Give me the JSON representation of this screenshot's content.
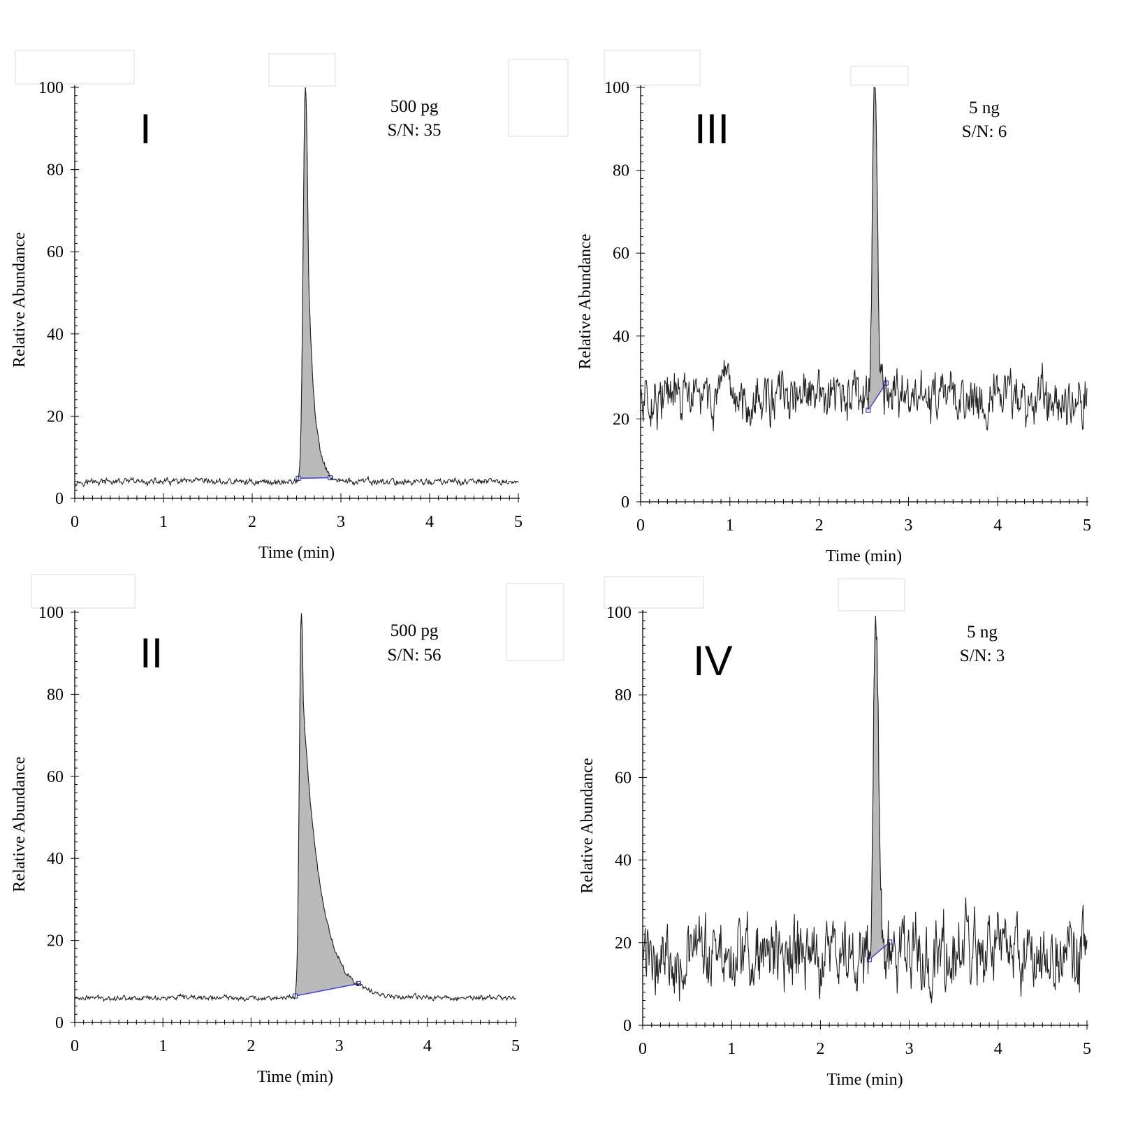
{
  "chart_data": [
    {
      "type": "line",
      "panel_label": "I",
      "amount": "500 pg",
      "sn": "S/N: 35",
      "xlabel": "Time (min)",
      "ylabel": "Relative Abundance",
      "xlim": [
        0,
        5
      ],
      "ylim": [
        0,
        100
      ],
      "x_ticks": [
        "0",
        "1",
        "2",
        "3",
        "4",
        "5"
      ],
      "y_ticks": [
        "0",
        "20",
        "40",
        "60",
        "80",
        "100"
      ],
      "peak": {
        "start": 2.52,
        "apex": 2.6,
        "end": 2.88,
        "height": 100
      },
      "baseline_level": 4,
      "noise_amplitude": 0.8,
      "tail_decay": 0.07
    },
    {
      "type": "line",
      "panel_label": "II",
      "amount": "500 pg",
      "sn": "S/N: 56",
      "xlabel": "Time (min)",
      "ylabel": "Relative Abundance",
      "xlim": [
        0,
        5
      ],
      "ylim": [
        0,
        100
      ],
      "x_ticks": [
        "0",
        "1",
        "2",
        "3",
        "4",
        "5"
      ],
      "y_ticks": [
        "0",
        "20",
        "40",
        "60",
        "80",
        "100"
      ],
      "peak": {
        "start": 2.5,
        "apex": 2.57,
        "end": 3.22,
        "height": 100
      },
      "baseline_level": 6,
      "noise_amplitude": 0.6,
      "tail_decay": 0.2
    },
    {
      "type": "line",
      "panel_label": "III",
      "amount": "5 ng",
      "sn": "S/N: 6",
      "xlabel": "Time (min)",
      "ylabel": "Relative Abundance",
      "xlim": [
        0,
        5
      ],
      "ylim": [
        0,
        100
      ],
      "x_ticks": [
        "0",
        "1",
        "2",
        "3",
        "4",
        "5"
      ],
      "y_ticks": [
        "0",
        "20",
        "40",
        "60",
        "80",
        "100"
      ],
      "peak": {
        "start": 2.55,
        "apex": 2.62,
        "end": 2.75,
        "height": 100
      },
      "baseline_level": 25,
      "noise_amplitude": 6,
      "tail_decay": 0.03
    },
    {
      "type": "line",
      "panel_label": "IV",
      "amount": "5 ng",
      "sn": "S/N: 3",
      "xlabel": "Time (min)",
      "ylabel": "Relative Abundance",
      "xlim": [
        0,
        5
      ],
      "ylim": [
        0,
        100
      ],
      "x_ticks": [
        "0",
        "1",
        "2",
        "3",
        "4",
        "5"
      ],
      "y_ticks": [
        "0",
        "20",
        "40",
        "60",
        "80",
        "100"
      ],
      "peak": {
        "start": 2.55,
        "apex": 2.62,
        "end": 2.78,
        "height": 100
      },
      "baseline_level": 17,
      "noise_amplitude": 9,
      "tail_decay": 0.03
    }
  ]
}
